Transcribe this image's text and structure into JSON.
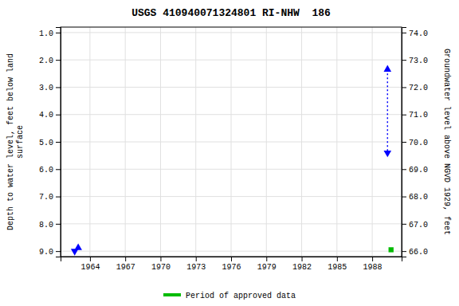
{
  "chart_data": {
    "type": "scatter",
    "title": "USGS 410940071324801 RI-NHW  186",
    "ylabel": "Depth to water level, feet below land\nsurface",
    "y2label": "Groundwater level above NGVD 1929, feet",
    "xlim": [
      1961.5,
      1990.5
    ],
    "xticks": [
      1964,
      1967,
      1970,
      1973,
      1976,
      1979,
      1982,
      1985,
      1988
    ],
    "ylim": [
      9.2,
      0.8
    ],
    "yticks": [
      {
        "value": 1.0,
        "label": "1.0"
      },
      {
        "value": 2.0,
        "label": "2.0"
      },
      {
        "value": 3.0,
        "label": "3.0"
      },
      {
        "value": 4.0,
        "label": "4.0"
      },
      {
        "value": 5.0,
        "label": "5.0"
      },
      {
        "value": 6.0,
        "label": "6.0"
      },
      {
        "value": 7.0,
        "label": "7.0"
      },
      {
        "value": 8.0,
        "label": "8.0"
      },
      {
        "value": 9.0,
        "label": "9.0"
      }
    ],
    "y2lim": [
      65.8,
      74.2
    ],
    "y2ticks": [
      {
        "value": 66.0,
        "label": "66.0"
      },
      {
        "value": 67.0,
        "label": "67.0"
      },
      {
        "value": 68.0,
        "label": "68.0"
      },
      {
        "value": 69.0,
        "label": "69.0"
      },
      {
        "value": 70.0,
        "label": "70.0"
      },
      {
        "value": 71.0,
        "label": "71.0"
      },
      {
        "value": 72.0,
        "label": "72.0"
      },
      {
        "value": 73.0,
        "label": "73.0"
      },
      {
        "value": 74.0,
        "label": "74.0"
      }
    ],
    "grid": true,
    "legend": "bottom",
    "series": [
      {
        "type": "scatter",
        "x": [
          1962.7
        ],
        "values": [
          9.0
        ],
        "color": "#0000ff",
        "marker": "triangle-down"
      },
      {
        "type": "scatter",
        "x": [
          1963.0
        ],
        "values": [
          8.88
        ],
        "color": "#0000ff",
        "marker": "triangle-up"
      },
      {
        "type": "scatter",
        "axis": "y2",
        "x": [
          1989.3
        ],
        "values": [
          72.65
        ],
        "color": "#0000ff",
        "marker": "triangle-up"
      },
      {
        "type": "scatter",
        "axis": "y2",
        "x": [
          1989.3
        ],
        "values": [
          69.6
        ],
        "color": "#0000ff",
        "marker": "triangle-down"
      },
      {
        "type": "scatter",
        "axis": "y2",
        "name": "Period of approved data",
        "x": [
          1989.6
        ],
        "values": [
          66.05
        ],
        "color": "#00bb00",
        "marker": "square"
      },
      {
        "type": "line",
        "axis": "y2",
        "x": [
          1989.3,
          1989.3
        ],
        "values": [
          72.65,
          69.6
        ],
        "color": "#0000ff",
        "line_style": "dotted"
      }
    ]
  }
}
